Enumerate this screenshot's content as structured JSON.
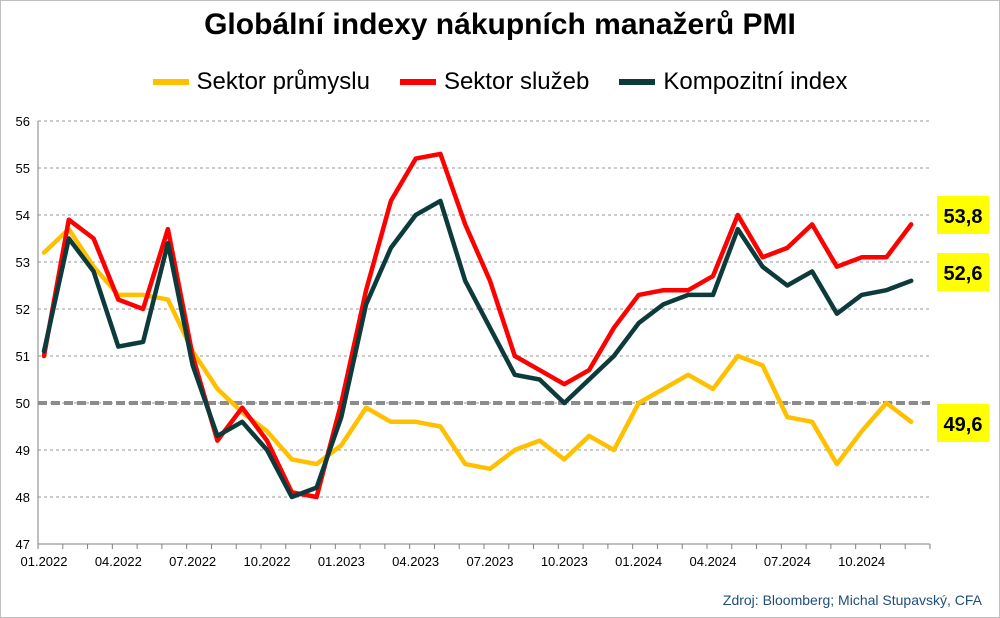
{
  "chart_data": {
    "type": "line",
    "title": "Globální indexy nákupních manažerů PMI",
    "source": "Zdroj: Bloomberg; Michal Stupavský, CFA",
    "ylim": [
      47,
      56
    ],
    "yticks": [
      "47",
      "48",
      "49",
      "50",
      "51",
      "52",
      "53",
      "54",
      "55",
      "56"
    ],
    "grid": true,
    "legend_position": "top",
    "reference_line": 50,
    "x_tick_labels": [
      "01.2022",
      "04.2022",
      "07.2022",
      "10.2022",
      "01.2023",
      "04.2023",
      "07.2023",
      "10.2023",
      "01.2024",
      "04.2024",
      "07.2024",
      "10.2024"
    ],
    "x": [
      "01.2022",
      "02.2022",
      "03.2022",
      "04.2022",
      "05.2022",
      "06.2022",
      "07.2022",
      "08.2022",
      "09.2022",
      "10.2022",
      "11.2022",
      "12.2022",
      "01.2023",
      "02.2023",
      "03.2023",
      "04.2023",
      "05.2023",
      "06.2023",
      "07.2023",
      "08.2023",
      "09.2023",
      "10.2023",
      "11.2023",
      "12.2023",
      "01.2024",
      "02.2024",
      "03.2024",
      "04.2024",
      "05.2024",
      "06.2024",
      "07.2024",
      "08.2024",
      "09.2024",
      "10.2024",
      "11.2024",
      "12.2024"
    ],
    "series": [
      {
        "name": "Sektor průmyslu",
        "color": "#ffc000",
        "values": [
          53.2,
          53.7,
          52.9,
          52.3,
          52.3,
          52.2,
          51.1,
          50.3,
          49.8,
          49.4,
          48.8,
          48.7,
          49.1,
          49.9,
          49.6,
          49.6,
          49.5,
          48.7,
          48.6,
          49.0,
          49.2,
          48.8,
          49.3,
          49.0,
          50.0,
          50.3,
          50.6,
          50.3,
          51.0,
          50.8,
          49.7,
          49.6,
          48.7,
          49.4,
          50.0,
          49.6
        ],
        "end_label": "49,6"
      },
      {
        "name": "Sektor služeb",
        "color": "#ff0000",
        "values": [
          51.0,
          53.9,
          53.5,
          52.2,
          52.0,
          53.7,
          51.0,
          49.2,
          49.9,
          49.2,
          48.1,
          48.0,
          50.0,
          52.4,
          54.3,
          55.2,
          55.3,
          53.8,
          52.6,
          51.0,
          50.7,
          50.4,
          50.7,
          51.6,
          52.3,
          52.4,
          52.4,
          52.7,
          54.0,
          53.1,
          53.3,
          53.8,
          52.9,
          53.1,
          53.1,
          53.8
        ],
        "end_label": "53,8"
      },
      {
        "name": "Kompozitní index",
        "color": "#0d3b3b",
        "values": [
          51.1,
          53.5,
          52.8,
          51.2,
          51.3,
          53.4,
          50.8,
          49.3,
          49.6,
          49.0,
          48.0,
          48.2,
          49.7,
          52.1,
          53.3,
          54.0,
          54.3,
          52.6,
          51.6,
          50.6,
          50.5,
          50.0,
          50.5,
          51.0,
          51.7,
          52.1,
          52.3,
          52.3,
          53.7,
          52.9,
          52.5,
          52.8,
          51.9,
          52.3,
          52.4,
          52.6
        ],
        "end_label": "52,6"
      }
    ]
  }
}
